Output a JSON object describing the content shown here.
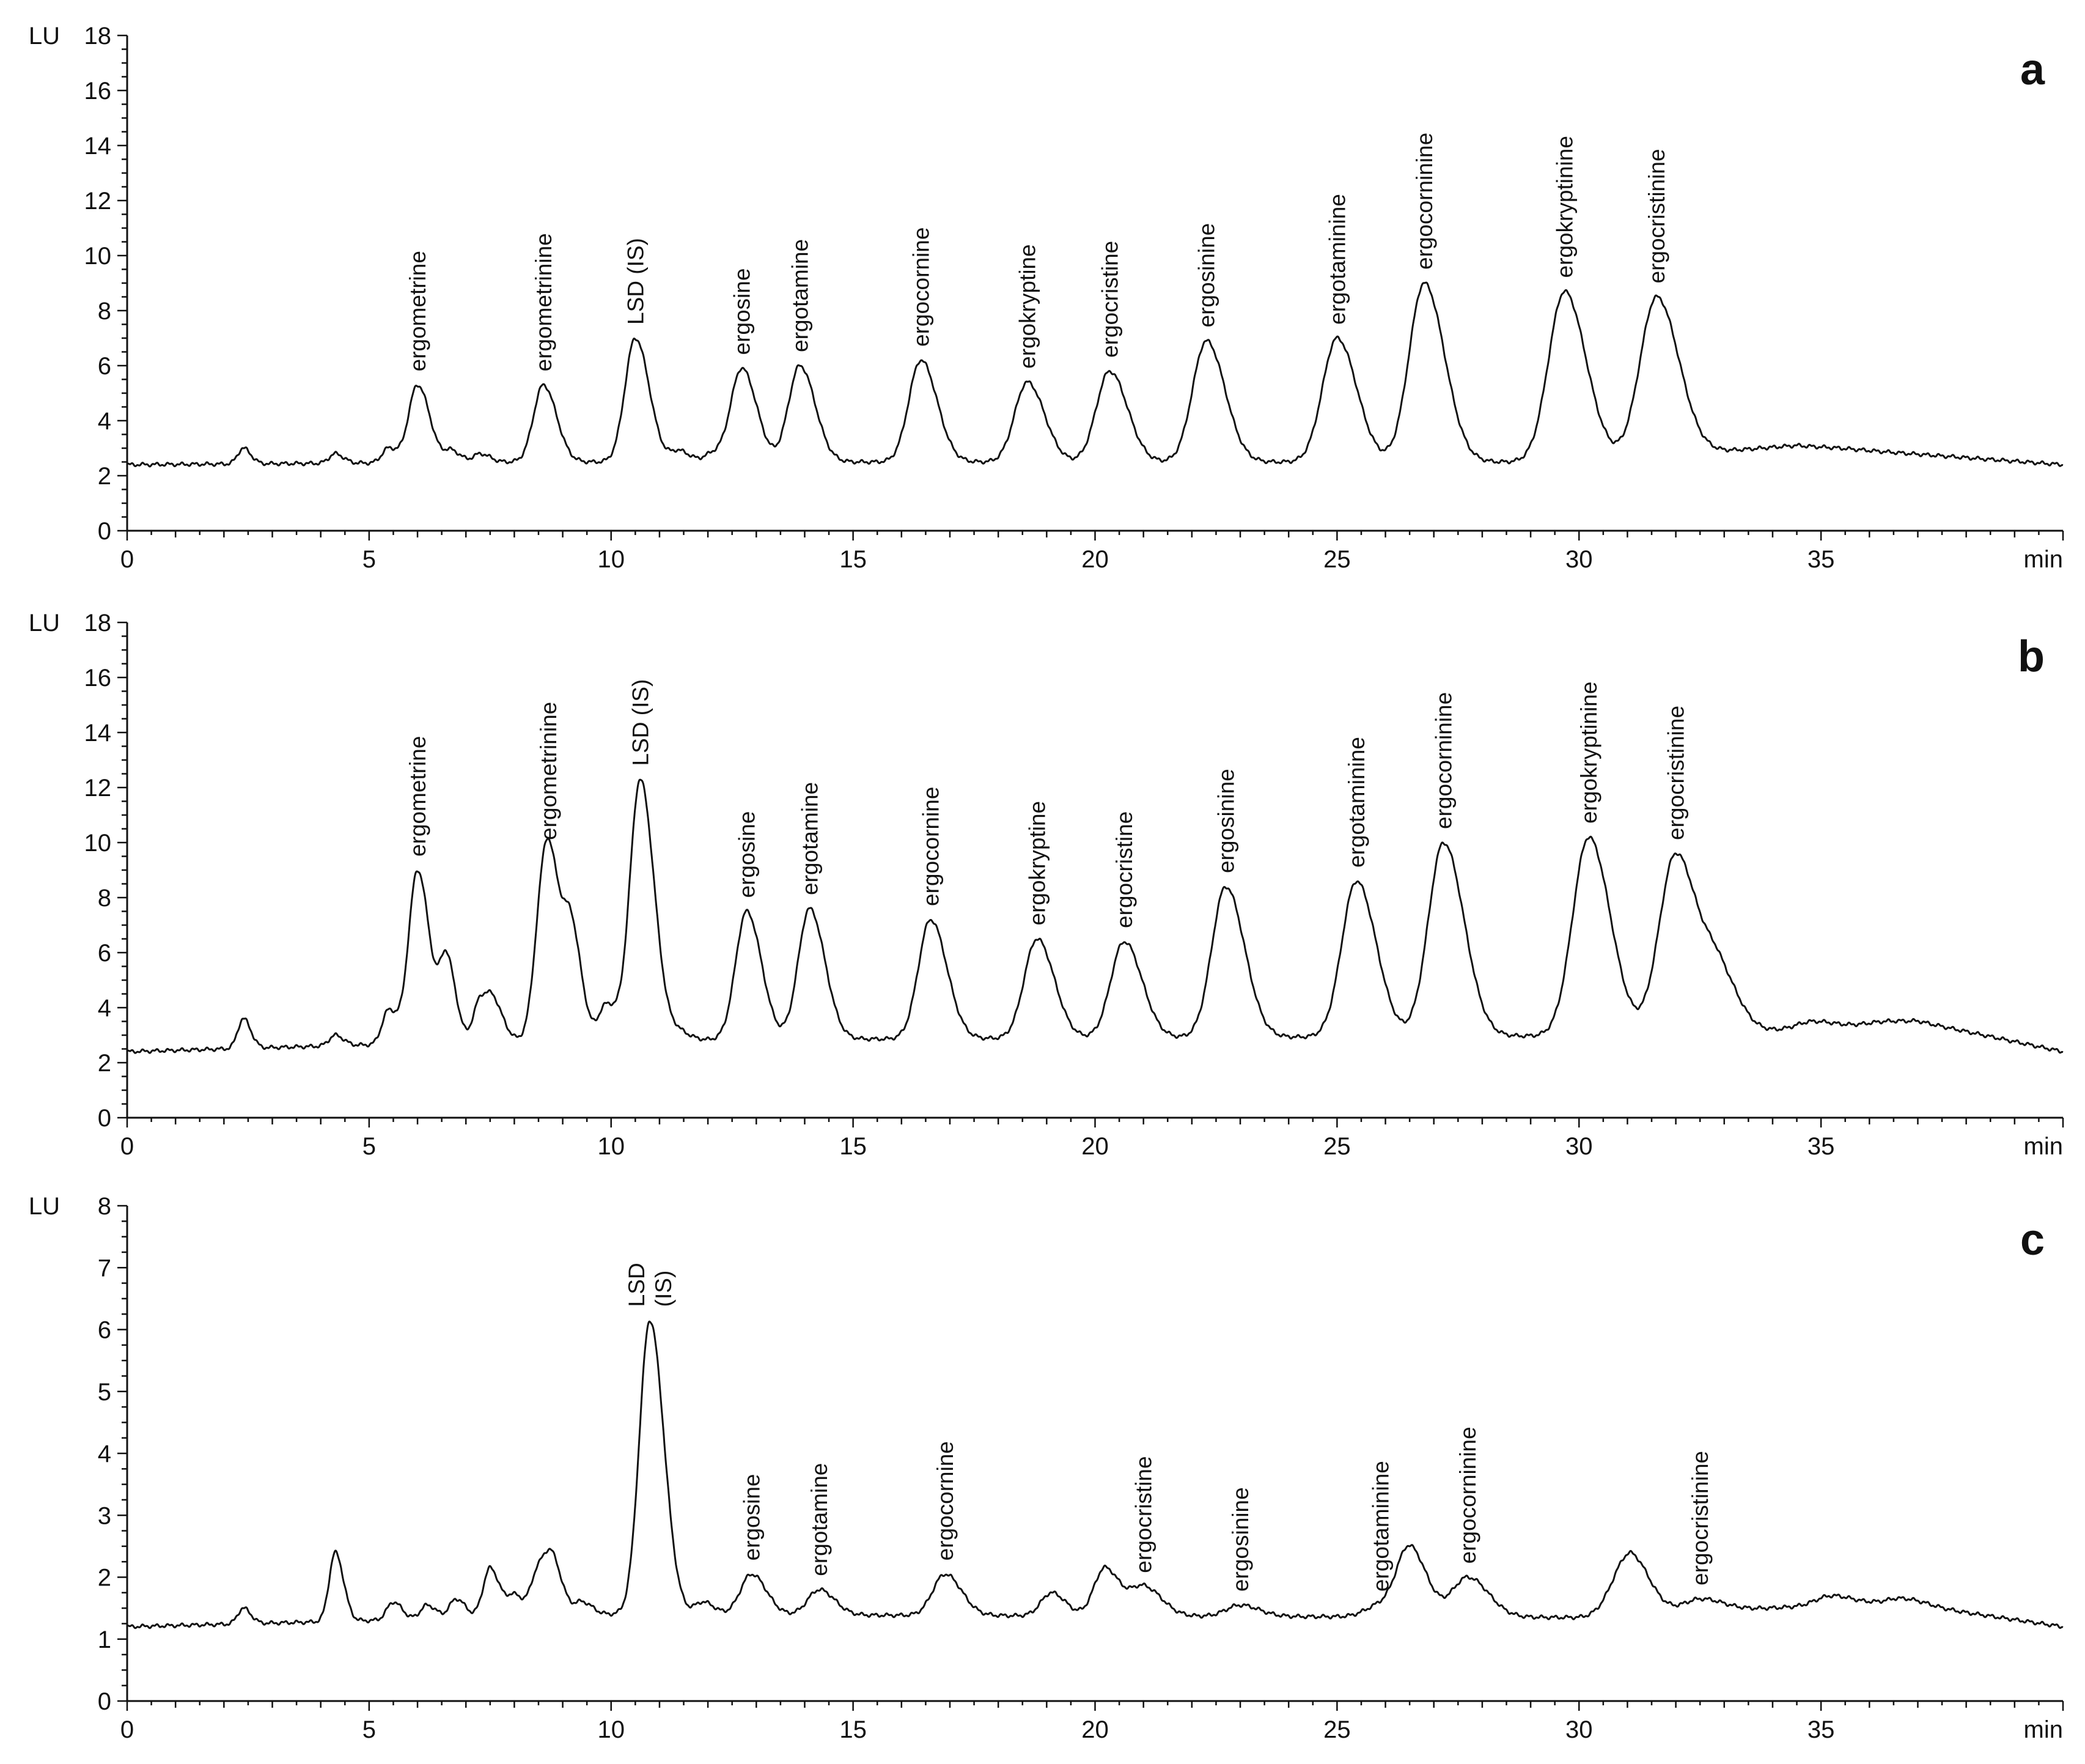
{
  "chart_data": [
    {
      "type": "line",
      "panel": "a",
      "ylabel": "LU",
      "xlabel": "min",
      "xlim": [
        0,
        40
      ],
      "ylim": [
        0,
        18
      ],
      "xticks": [
        0,
        5,
        10,
        15,
        20,
        25,
        30,
        35
      ],
      "yticks": [
        0,
        2,
        4,
        6,
        8,
        10,
        12,
        14,
        16,
        18
      ],
      "baseline": {
        "x": [
          0,
          8,
          30,
          34.5,
          40
        ],
        "y": [
          2.4,
          2.5,
          2.5,
          3.1,
          2.4
        ]
      },
      "labeled_peaks": [
        {
          "label": "ergometrine",
          "x": 6.0,
          "y": 5.3
        },
        {
          "label": "ergometrinine",
          "x": 8.6,
          "y": 5.3
        },
        {
          "label": "LSD (IS)",
          "x": 10.5,
          "y": 7.0
        },
        {
          "label": "ergosine",
          "x": 12.7,
          "y": 5.9
        },
        {
          "label": "ergotamine",
          "x": 13.9,
          "y": 6.0
        },
        {
          "label": "ergocornine",
          "x": 16.4,
          "y": 6.2
        },
        {
          "label": "ergokryptine",
          "x": 18.6,
          "y": 5.4
        },
        {
          "label": "ergocristine",
          "x": 20.3,
          "y": 5.8
        },
        {
          "label": "ergosinine",
          "x": 22.3,
          "y": 6.9
        },
        {
          "label": "ergotaminine",
          "x": 25.0,
          "y": 7.0
        },
        {
          "label": "ergocorninine",
          "x": 26.8,
          "y": 9.0
        },
        {
          "label": "ergokryptinine",
          "x": 29.7,
          "y": 8.7
        },
        {
          "label": "ergocristinine",
          "x": 31.6,
          "y": 8.5
        }
      ],
      "minor_peaks": [
        {
          "x": 2.4,
          "y": 3.0
        },
        {
          "x": 4.3,
          "y": 2.8
        },
        {
          "x": 5.4,
          "y": 3.0
        },
        {
          "x": 6.7,
          "y": 2.9
        },
        {
          "x": 7.3,
          "y": 2.8
        },
        {
          "x": 11.4,
          "y": 2.9
        },
        {
          "x": 12.1,
          "y": 2.8
        },
        {
          "x": 35.4,
          "y": 3.0
        }
      ]
    },
    {
      "type": "line",
      "panel": "b",
      "ylabel": "LU",
      "xlabel": "min",
      "xlim": [
        0,
        40
      ],
      "ylim": [
        0,
        18
      ],
      "xticks": [
        0,
        5,
        10,
        15,
        20,
        25,
        30,
        35
      ],
      "yticks": [
        0,
        2,
        4,
        6,
        8,
        10,
        12,
        14,
        16,
        18
      ],
      "baseline": {
        "x": [
          0,
          8,
          32.5,
          37,
          40
        ],
        "y": [
          2.4,
          2.8,
          3.0,
          3.5,
          2.4
        ]
      },
      "labeled_peaks": [
        {
          "label": "ergometrine",
          "x": 6.0,
          "y": 9.0
        },
        {
          "label": "ergometrinine",
          "x": 8.7,
          "y": 9.6
        },
        {
          "label": "LSD (IS)",
          "x": 10.6,
          "y": 12.3
        },
        {
          "label": "ergosine",
          "x": 12.8,
          "y": 7.5
        },
        {
          "label": "ergotamine",
          "x": 14.1,
          "y": 7.6
        },
        {
          "label": "ergocornine",
          "x": 16.6,
          "y": 7.2
        },
        {
          "label": "ergokryptine",
          "x": 18.8,
          "y": 6.5
        },
        {
          "label": "ergocristine",
          "x": 20.6,
          "y": 6.4
        },
        {
          "label": "ergosinine",
          "x": 22.7,
          "y": 8.4
        },
        {
          "label": "ergotaminine",
          "x": 25.4,
          "y": 8.6
        },
        {
          "label": "ergocorninine",
          "x": 27.2,
          "y": 10.0
        },
        {
          "label": "ergokryptinine",
          "x": 30.2,
          "y": 10.2
        },
        {
          "label": "ergocristinine",
          "x": 32.0,
          "y": 9.6
        }
      ],
      "minor_peaks": [
        {
          "x": 2.4,
          "y": 3.6
        },
        {
          "x": 4.3,
          "y": 3.0
        },
        {
          "x": 5.4,
          "y": 3.9
        },
        {
          "x": 6.6,
          "y": 5.7
        },
        {
          "x": 7.3,
          "y": 4.3
        },
        {
          "x": 7.6,
          "y": 3.9
        },
        {
          "x": 8.5,
          "y": 3.7
        },
        {
          "x": 9.2,
          "y": 6.1
        },
        {
          "x": 9.9,
          "y": 4.1
        },
        {
          "x": 11.4,
          "y": 3.1
        },
        {
          "x": 32.9,
          "y": 5.0
        },
        {
          "x": 34.8,
          "y": 3.5
        },
        {
          "x": 36.3,
          "y": 3.5
        }
      ]
    },
    {
      "type": "line",
      "panel": "c",
      "ylabel": "LU",
      "xlabel": "min",
      "xlim": [
        0,
        40
      ],
      "ylim": [
        0,
        8
      ],
      "xticks": [
        0,
        5,
        10,
        15,
        20,
        25,
        30,
        35
      ],
      "yticks": [
        0,
        1,
        2,
        3,
        4,
        5,
        6,
        7,
        8
      ],
      "baseline": {
        "x": [
          0,
          10,
          30,
          36.5,
          40
        ],
        "y": [
          1.2,
          1.4,
          1.35,
          1.6,
          1.2
        ]
      },
      "labeled_peaks": [
        {
          "label": "LSD\n(IS)",
          "x": 10.8,
          "y": 6.15
        },
        {
          "label": "ergosine",
          "x": 12.9,
          "y": 2.05
        },
        {
          "label": "ergotamine",
          "x": 14.3,
          "y": 1.8
        },
        {
          "label": "ergocornine",
          "x": 16.9,
          "y": 2.05
        },
        {
          "label": "ergocristine",
          "x": 21.0,
          "y": 1.85
        },
        {
          "label": "ergosinine",
          "x": 23.0,
          "y": 1.55
        },
        {
          "label": "ergotaminine",
          "x": 25.9,
          "y": 1.55
        },
        {
          "label": "ergocorninine",
          "x": 27.7,
          "y": 2.0
        },
        {
          "label": "ergocristinine",
          "x": 32.5,
          "y": 1.65
        }
      ],
      "minor_peaks": [
        {
          "x": 2.4,
          "y": 1.5
        },
        {
          "x": 4.3,
          "y": 2.4
        },
        {
          "x": 5.5,
          "y": 1.6
        },
        {
          "x": 6.2,
          "y": 1.55
        },
        {
          "x": 6.8,
          "y": 1.65
        },
        {
          "x": 7.5,
          "y": 2.15
        },
        {
          "x": 8.0,
          "y": 1.7
        },
        {
          "x": 8.5,
          "y": 2.1
        },
        {
          "x": 8.8,
          "y": 2.15
        },
        {
          "x": 9.4,
          "y": 1.6
        },
        {
          "x": 11.9,
          "y": 1.6
        },
        {
          "x": 19.1,
          "y": 1.75
        },
        {
          "x": 20.2,
          "y": 2.15
        },
        {
          "x": 26.5,
          "y": 2.45
        },
        {
          "x": 30.8,
          "y": 1.7
        },
        {
          "x": 31.1,
          "y": 2.15
        },
        {
          "x": 35.2,
          "y": 1.7
        },
        {
          "x": 36.8,
          "y": 1.65
        }
      ]
    }
  ]
}
